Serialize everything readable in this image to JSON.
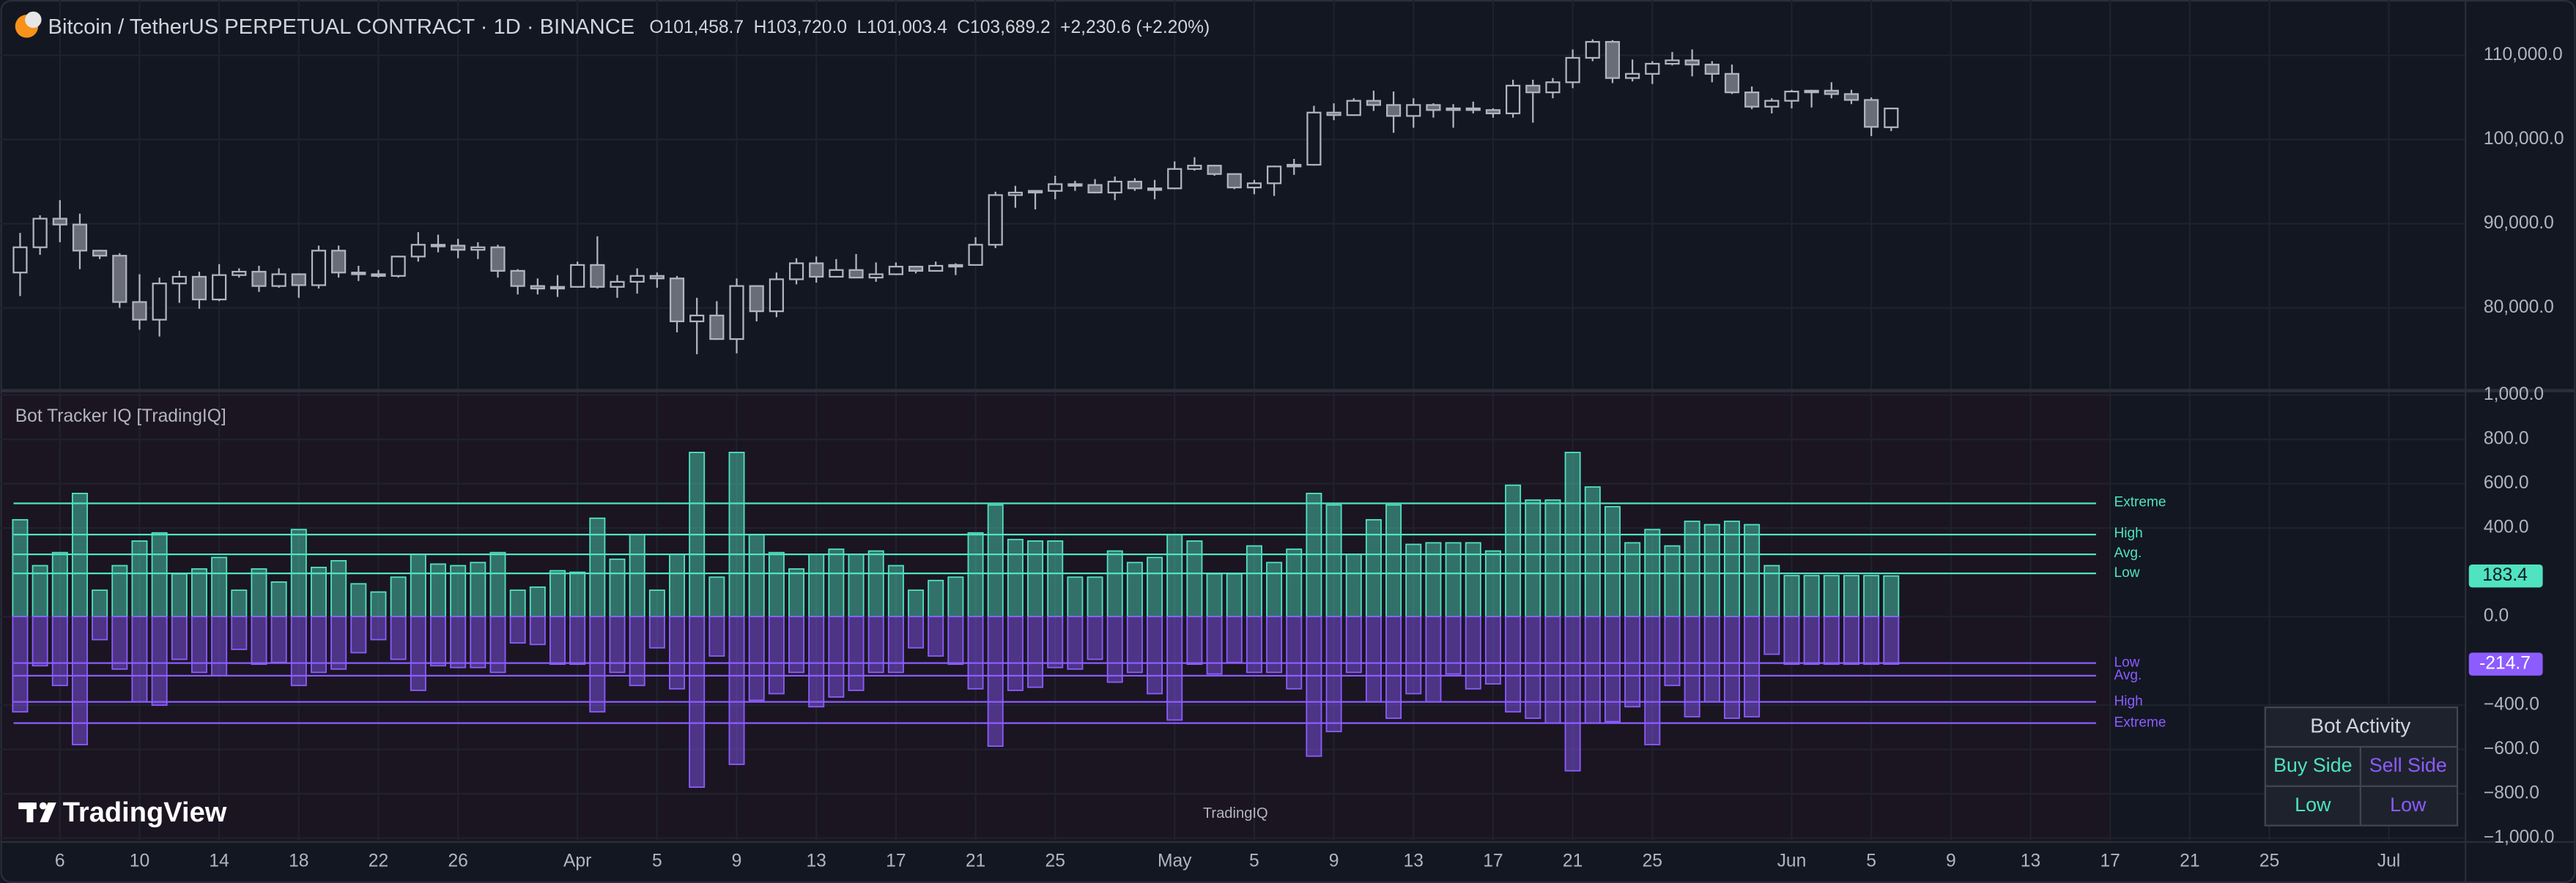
{
  "header": {
    "title": "Bitcoin / TetherUS PERPETUAL CONTRACT · 1D · BINANCE",
    "open": "O101,458.7",
    "high": "H103,720.0",
    "low": "L101,003.4",
    "close": "C103,689.2",
    "change": "+2,230.6 (+2.20%)"
  },
  "branding": {
    "logo": "TradingView",
    "watermark": "TradingIQ"
  },
  "chart_data": [
    {
      "type": "candlestick",
      "categories": [
        null,
        null,
        "6",
        null,
        null,
        null,
        "10",
        null,
        null,
        null,
        "14",
        null,
        null,
        null,
        "18",
        null,
        null,
        null,
        "22",
        null,
        null,
        null,
        "26",
        null,
        null,
        null,
        null,
        null,
        "Apr",
        null,
        null,
        null,
        "5",
        null,
        null,
        null,
        "9",
        null,
        null,
        null,
        "13",
        null,
        null,
        null,
        "17",
        null,
        null,
        null,
        "21",
        null,
        null,
        null,
        "25",
        null,
        null,
        null,
        null,
        null,
        "May",
        null,
        null,
        null,
        "5",
        null,
        null,
        null,
        "9",
        null,
        null,
        null,
        "13",
        null,
        null,
        null,
        "17",
        null,
        null,
        null,
        "21",
        null,
        null,
        null,
        "25",
        null,
        null,
        null,
        null,
        null,
        null,
        "Jun",
        null,
        null,
        null,
        "5",
        null,
        null,
        null,
        "9",
        null,
        null,
        null,
        "13",
        null,
        null,
        null,
        "17",
        null,
        null,
        null,
        "21",
        null,
        null,
        null,
        "25",
        null,
        null,
        null,
        null,
        null,
        "Jul",
        null,
        null
      ],
      "open": [
        84200,
        87200,
        90600,
        89900,
        86800,
        86200,
        80700,
        78600,
        82900,
        83700,
        81000,
        83900,
        84300,
        82600,
        84000,
        82700,
        86800,
        84200,
        84000,
        83800,
        86100,
        87500,
        87400,
        86900,
        87200,
        84400,
        82600,
        82300,
        82500,
        85100,
        82500,
        83100,
        83800,
        83500,
        78400,
        79100,
        76300,
        82600,
        79600,
        83400,
        85300,
        83700,
        84500,
        83600,
        84000,
        84900,
        84400,
        85000,
        85100,
        87500,
        93400,
        93700,
        93900,
        94700,
        94600,
        93700,
        95000,
        94200,
        94200,
        96500,
        96900,
        95900,
        94300,
        94800,
        96800,
        97000,
        103200,
        102900,
        104600,
        104100,
        102800,
        104100,
        103500,
        103700,
        103500,
        103100,
        106400,
        105600,
        106800,
        109700,
        111600,
        107300,
        107800,
        109000,
        109400,
        108900,
        107800,
        105600,
        103900,
        104600,
        105700,
        105800,
        105400,
        104700,
        101458.7,
        null,
        null,
        null,
        null,
        null,
        null,
        null,
        null,
        null,
        null,
        null,
        null,
        null,
        null,
        null,
        null,
        null,
        null,
        null,
        null,
        null,
        null,
        null,
        null,
        null,
        null,
        null
      ],
      "high": [
        88900,
        91000,
        92800,
        91200,
        86900,
        86500,
        84000,
        83600,
        84400,
        84300,
        85200,
        84700,
        85000,
        84700,
        84100,
        87400,
        87400,
        85000,
        84500,
        86200,
        89000,
        88700,
        88200,
        87800,
        87500,
        84600,
        83500,
        83900,
        85500,
        88500,
        83900,
        84700,
        84200,
        83800,
        81200,
        80800,
        83500,
        82700,
        84200,
        85900,
        86100,
        85800,
        86400,
        85400,
        85400,
        85000,
        85500,
        85300,
        88400,
        93800,
        94500,
        94000,
        95700,
        95100,
        95300,
        95600,
        95400,
        95200,
        97400,
        97900,
        96900,
        96000,
        95200,
        96900,
        97700,
        104000,
        104300,
        104900,
        105800,
        105700,
        104900,
        104300,
        104200,
        104500,
        103700,
        107100,
        107100,
        107300,
        110700,
        111900,
        111800,
        109500,
        109300,
        110400,
        110700,
        109300,
        108900,
        106300,
        104900,
        105900,
        105900,
        106800,
        105900,
        105000,
        103720.0,
        null,
        null,
        null,
        null,
        null,
        null,
        null,
        null,
        null,
        null,
        null,
        null,
        null,
        null,
        null,
        null,
        null,
        null,
        null,
        null,
        null,
        null,
        null,
        null,
        null,
        null,
        null
      ],
      "low": [
        81400,
        86300,
        87800,
        84600,
        85800,
        80000,
        77400,
        76600,
        80600,
        79900,
        80800,
        83600,
        81900,
        82400,
        81200,
        82300,
        83600,
        83200,
        83600,
        83600,
        85500,
        86600,
        85900,
        85800,
        83600,
        81600,
        81600,
        81300,
        82400,
        82300,
        81200,
        81700,
        82400,
        77100,
        74500,
        76200,
        74600,
        78400,
        78900,
        82800,
        83000,
        83600,
        83600,
        83100,
        83900,
        84100,
        84300,
        83900,
        85100,
        87100,
        91900,
        91700,
        92900,
        93900,
        93600,
        92800,
        93900,
        92900,
        94100,
        96300,
        95700,
        94100,
        93500,
        93300,
        95800,
        96900,
        102300,
        102800,
        103400,
        100800,
        101400,
        102600,
        101400,
        103100,
        102600,
        102600,
        102000,
        104900,
        106100,
        109300,
        106700,
        106900,
        106600,
        108800,
        107500,
        106800,
        105400,
        103600,
        103100,
        103700,
        103800,
        104900,
        104200,
        100400,
        101003.4,
        null,
        null,
        null,
        null,
        null,
        null,
        null,
        null,
        null,
        null,
        null,
        null,
        null,
        null,
        null,
        null,
        null,
        null,
        null,
        null,
        null,
        null,
        null,
        null,
        null,
        null,
        null
      ],
      "close": [
        87200,
        90600,
        89900,
        86800,
        86200,
        80700,
        78600,
        82900,
        83700,
        81000,
        83900,
        84300,
        82600,
        84000,
        82700,
        86800,
        84200,
        84000,
        83800,
        86100,
        87500,
        87400,
        86900,
        87200,
        84400,
        82600,
        82300,
        82500,
        85100,
        82500,
        83100,
        83800,
        83500,
        78400,
        79100,
        76300,
        82600,
        79600,
        83400,
        85300,
        83700,
        84500,
        83600,
        84000,
        84900,
        84400,
        85000,
        85100,
        87500,
        93400,
        93700,
        93900,
        94700,
        94600,
        93700,
        95000,
        94200,
        94200,
        96500,
        96900,
        95900,
        94300,
        94800,
        96800,
        97000,
        103200,
        102900,
        104600,
        104100,
        102800,
        104100,
        103500,
        103700,
        103500,
        103100,
        106400,
        105600,
        106800,
        109700,
        111600,
        107300,
        107800,
        109000,
        109400,
        108900,
        107800,
        105600,
        103900,
        104600,
        105700,
        105800,
        105400,
        104700,
        101500,
        103689.2,
        null,
        null,
        null,
        null,
        null,
        null,
        null,
        null,
        null,
        null,
        null,
        null,
        null,
        null,
        null,
        null,
        null,
        null,
        null,
        null,
        null,
        null,
        null,
        null,
        null,
        null,
        null
      ],
      "up_color": "#131722",
      "down_color": "#6a6d78",
      "wick_color": "#b2b5be",
      "ylim": [
        70370,
        116570
      ],
      "yticks": [
        {
          "value": 80000,
          "label": "80,000.0"
        },
        {
          "value": 90000,
          "label": "90,000.0"
        },
        {
          "value": 100000,
          "label": "100,000.0"
        },
        {
          "value": 110000,
          "label": "110,000.0"
        }
      ],
      "grid": true
    },
    {
      "type": "bar",
      "title": "Bot Tracker IQ [TradingIQ]",
      "series": [
        {
          "name": "Buy Side",
          "color": "#4fe3c1",
          "activity": "Low",
          "values": [
            437,
            230,
            289,
            556,
            119,
            230,
            341,
            378,
            193,
            215,
            267,
            119,
            215,
            156,
            393,
            222,
            252,
            148,
            111,
            178,
            281,
            237,
            230,
            244,
            289,
            119,
            133,
            207,
            200,
            444,
            259,
            370,
            119,
            281,
            741,
            178,
            741,
            370,
            289,
            215,
            281,
            304,
            281,
            296,
            230,
            119,
            163,
            178,
            378,
            504,
            348,
            341,
            341,
            178,
            178,
            296,
            244,
            267,
            370,
            341,
            193,
            193,
            319,
            244,
            304,
            556,
            504,
            281,
            437,
            504,
            326,
            333,
            333,
            333,
            296,
            593,
            526,
            526,
            741,
            585,
            496,
            333,
            393,
            319,
            430,
            415,
            430,
            415,
            230,
            185,
            185,
            185,
            185,
            185,
            183.4
          ],
          "levels": [
            {
              "label": "Extreme",
              "value": 511
            },
            {
              "label": "High",
              "value": 370
            },
            {
              "label": "Avg.",
              "value": 281
            },
            {
              "label": "Low",
              "value": 195
            }
          ]
        },
        {
          "name": "Sell Side",
          "color": "#8c5cff",
          "activity": "Low",
          "values": [
            -430,
            -222,
            -311,
            -578,
            -104,
            -237,
            -385,
            -400,
            -193,
            -252,
            -267,
            -148,
            -215,
            -207,
            -311,
            -252,
            -237,
            -163,
            -104,
            -193,
            -333,
            -222,
            -230,
            -230,
            -252,
            -119,
            -126,
            -215,
            -215,
            -430,
            -252,
            -311,
            -141,
            -326,
            -770,
            -178,
            -667,
            -378,
            -348,
            -252,
            -407,
            -363,
            -333,
            -252,
            -252,
            -141,
            -178,
            -215,
            -326,
            -585,
            -333,
            -319,
            -230,
            -237,
            -193,
            -296,
            -252,
            -348,
            -467,
            -215,
            -259,
            -207,
            -252,
            -252,
            -326,
            -630,
            -519,
            -252,
            -385,
            -459,
            -348,
            -385,
            -259,
            -326,
            -304,
            -430,
            -459,
            -481,
            -696,
            -481,
            -474,
            -407,
            -578,
            -311,
            -452,
            -385,
            -459,
            -452,
            -170,
            -215,
            -215,
            -215,
            -215,
            -215,
            -214.7
          ],
          "levels": [
            {
              "label": "Low",
              "value": -210
            },
            {
              "label": "Avg.",
              "value": -267
            },
            {
              "label": "High",
              "value": -385
            },
            {
              "label": "Extreme",
              "value": -481
            }
          ]
        }
      ],
      "table_title": "Bot Activity",
      "ylim": [
        -1010,
        1020
      ],
      "yticks": [
        {
          "value": 1000,
          "label": "1,000.0"
        },
        {
          "value": 800,
          "label": "800.0"
        },
        {
          "value": 600,
          "label": "600.0"
        },
        {
          "value": 400,
          "label": "400.0"
        },
        {
          "value": 0,
          "label": "0.0"
        },
        {
          "value": -400,
          "label": "−400.0"
        },
        {
          "value": -600,
          "label": "−600.0"
        },
        {
          "value": -800,
          "label": "−800.0"
        },
        {
          "value": -1000,
          "label": "−1,000.0"
        }
      ],
      "grid": true
    }
  ]
}
